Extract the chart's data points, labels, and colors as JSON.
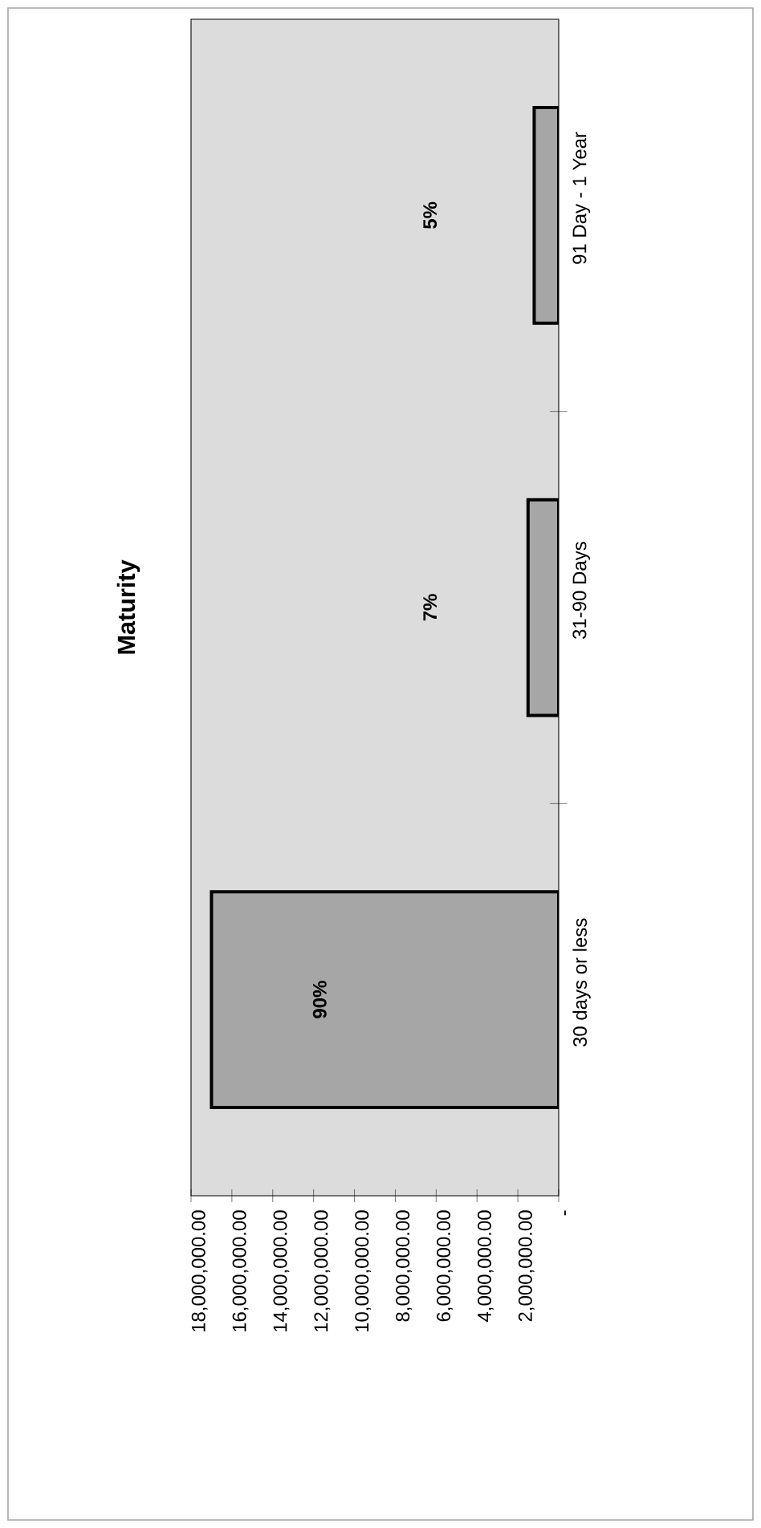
{
  "chart_data": {
    "type": "bar",
    "orientation": "horizontal",
    "title": "Maturity",
    "categories": [
      "91 Day - 1 Year",
      "31-90 Days",
      "30 days or less"
    ],
    "values": [
      1200000,
      1500000,
      17000000
    ],
    "annotations": [
      "5%",
      "7%",
      "90%"
    ],
    "color": "#a6a6a6",
    "xlim": [
      18000000,
      0
    ],
    "xticks": [
      {
        "value": 0,
        "label": "-"
      },
      {
        "value": 2000000,
        "label": "2,000,000.00"
      },
      {
        "value": 4000000,
        "label": "4,000,000.00"
      },
      {
        "value": 6000000,
        "label": "6,000,000.00"
      },
      {
        "value": 8000000,
        "label": "8,000,000.00"
      },
      {
        "value": 10000000,
        "label": "10,000,000.00"
      },
      {
        "value": 12000000,
        "label": "12,000,000.00"
      },
      {
        "value": 14000000,
        "label": "14,000,000.00"
      },
      {
        "value": 16000000,
        "label": "16,000,000.00"
      },
      {
        "value": 18000000,
        "label": "18,000,000.00"
      }
    ]
  }
}
